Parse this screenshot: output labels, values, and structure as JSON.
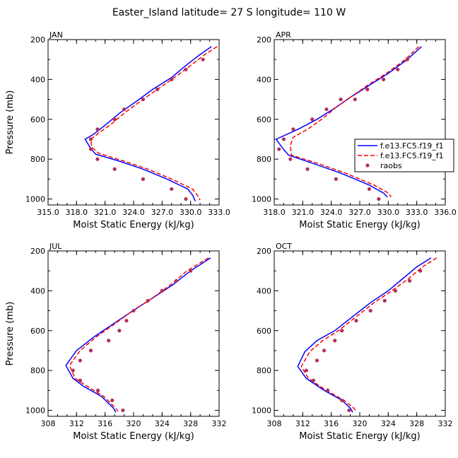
{
  "figure_title": "Easter_Island  latitude= 27 S longitude= 110 W",
  "colors": {
    "model1": "#0000ff",
    "model2": "#ff0000",
    "raobs": "#b0305a",
    "axis": "#000000"
  },
  "legend": {
    "entries": [
      "f.e13.FC5.f19_f1",
      "f.e13.FC5.f19_f1",
      "raobs"
    ]
  },
  "chart_data": [
    {
      "type": "line",
      "panel": "JAN",
      "xlabel": "Moist Static Energy (kJ/kg)",
      "ylabel": "Pressure (mb)",
      "xlim": [
        315,
        333
      ],
      "ylim": [
        1030,
        200
      ],
      "xticks": [
        "315.0",
        "318.0",
        "321.0",
        "324.0",
        "327.0",
        "330.0",
        "333.0"
      ],
      "xtick_values": [
        315,
        318,
        321,
        324,
        327,
        330,
        333
      ],
      "yticks": [
        "200",
        "400",
        "600",
        "800",
        "1000"
      ],
      "ytick_values": [
        200,
        400,
        600,
        800,
        1000
      ],
      "series": [
        {
          "name": "f.e13.FC5.f19_f1",
          "style": "solid",
          "points": [
            [
              332.2,
              235
            ],
            [
              331.0,
              275
            ],
            [
              329.5,
              330
            ],
            [
              328.0,
              390
            ],
            [
              326.0,
              450
            ],
            [
              324.3,
              510
            ],
            [
              322.5,
              570
            ],
            [
              321.0,
              630
            ],
            [
              319.8,
              675
            ],
            [
              318.9,
              700
            ],
            [
              319.4,
              740
            ],
            [
              320.0,
              775
            ],
            [
              322.5,
              810
            ],
            [
              325.0,
              850
            ],
            [
              327.5,
              900
            ],
            [
              329.7,
              950
            ],
            [
              330.2,
              980
            ],
            [
              330.5,
              1010
            ]
          ]
        },
        {
          "name": "f.e13.FC5.f19_f1",
          "style": "dashed",
          "points": [
            [
              332.8,
              235
            ],
            [
              331.5,
              275
            ],
            [
              330.0,
              330
            ],
            [
              328.3,
              390
            ],
            [
              326.5,
              450
            ],
            [
              324.7,
              510
            ],
            [
              323.0,
              570
            ],
            [
              321.5,
              630
            ],
            [
              320.3,
              670
            ],
            [
              319.5,
              700
            ],
            [
              319.6,
              740
            ],
            [
              320.3,
              770
            ],
            [
              323.0,
              810
            ],
            [
              325.5,
              850
            ],
            [
              328.0,
              900
            ],
            [
              330.2,
              950
            ],
            [
              330.7,
              980
            ],
            [
              331.0,
              1005
            ]
          ]
        }
      ],
      "raobs": [
        [
          331.3,
          300
        ],
        [
          329.5,
          350
        ],
        [
          328.0,
          400
        ],
        [
          326.5,
          450
        ],
        [
          325.0,
          500
        ],
        [
          323.0,
          550
        ],
        [
          322.0,
          600
        ],
        [
          320.2,
          650
        ],
        [
          319.5,
          700
        ],
        [
          319.5,
          750
        ],
        [
          320.2,
          800
        ],
        [
          322.0,
          850
        ],
        [
          325.0,
          900
        ],
        [
          328.0,
          950
        ],
        [
          329.5,
          1000
        ]
      ]
    },
    {
      "type": "line",
      "panel": "APR",
      "xlabel": "Moist Static Energy (kJ/kg)",
      "ylabel": "Pressure (mb)",
      "xlim": [
        318,
        336
      ],
      "ylim": [
        1030,
        200
      ],
      "xticks": [
        "318.0",
        "321.0",
        "324.0",
        "327.0",
        "330.0",
        "333.0",
        "336.0"
      ],
      "xtick_values": [
        318,
        321,
        324,
        327,
        330,
        333,
        336
      ],
      "yticks": [
        "200",
        "400",
        "600",
        "800",
        "1000"
      ],
      "ytick_values": [
        200,
        400,
        600,
        800,
        1000
      ],
      "series": [
        {
          "name": "f.e13.FC5.f19_f1",
          "style": "solid",
          "points": [
            [
              333.5,
              235
            ],
            [
              332.0,
              300
            ],
            [
              330.0,
              370
            ],
            [
              328.0,
              430
            ],
            [
              326.0,
              490
            ],
            [
              324.5,
              540
            ],
            [
              322.5,
              600
            ],
            [
              320.5,
              650
            ],
            [
              318.2,
              700
            ],
            [
              318.8,
              740
            ],
            [
              319.5,
              780
            ],
            [
              322.0,
              820
            ],
            [
              325.0,
              870
            ],
            [
              328.0,
              930
            ],
            [
              329.5,
              970
            ],
            [
              329.9,
              990
            ]
          ]
        },
        {
          "name": "f.e13.FC5.f19_f1",
          "style": "dashed",
          "points": [
            [
              333.2,
              235
            ],
            [
              331.8,
              300
            ],
            [
              329.8,
              370
            ],
            [
              327.8,
              430
            ],
            [
              326.0,
              490
            ],
            [
              324.5,
              540
            ],
            [
              323.0,
              600
            ],
            [
              321.5,
              650
            ],
            [
              320.0,
              690
            ],
            [
              319.7,
              730
            ],
            [
              319.8,
              780
            ],
            [
              322.5,
              820
            ],
            [
              325.5,
              870
            ],
            [
              328.5,
              930
            ],
            [
              330.0,
              970
            ],
            [
              330.3,
              990
            ]
          ]
        }
      ],
      "raobs": [
        [
          332.0,
          300
        ],
        [
          331.0,
          350
        ],
        [
          329.5,
          400
        ],
        [
          327.8,
          450
        ],
        [
          326.5,
          500
        ],
        [
          325.0,
          500
        ],
        [
          322.0,
          600
        ],
        [
          323.5,
          550
        ],
        [
          320.0,
          650
        ],
        [
          319.0,
          700
        ],
        [
          318.5,
          750
        ],
        [
          319.7,
          800
        ],
        [
          321.5,
          850
        ],
        [
          324.5,
          900
        ],
        [
          328.0,
          950
        ],
        [
          329.0,
          1000
        ]
      ]
    },
    {
      "type": "line",
      "panel": "JUL",
      "xlabel": "Moist Static Energy (kJ/kg)",
      "ylabel": "Pressure (mb)",
      "xlim": [
        308,
        332
      ],
      "ylim": [
        1030,
        200
      ],
      "xticks": [
        "308",
        "312",
        "316",
        "320",
        "324",
        "328",
        "332"
      ],
      "xtick_values": [
        308,
        312,
        316,
        320,
        324,
        328,
        332
      ],
      "yticks": [
        "200",
        "400",
        "600",
        "800",
        "1000"
      ],
      "ytick_values": [
        200,
        400,
        600,
        800,
        1000
      ],
      "series": [
        {
          "name": "f.e13.FC5.f19_f1",
          "style": "solid",
          "points": [
            [
              330.8,
              235
            ],
            [
              328.0,
              300
            ],
            [
              325.5,
              370
            ],
            [
              322.5,
              440
            ],
            [
              319.5,
              510
            ],
            [
              317.0,
              570
            ],
            [
              314.5,
              630
            ],
            [
              312.0,
              700
            ],
            [
              310.5,
              775
            ],
            [
              311.5,
              840
            ],
            [
              313.0,
              880
            ],
            [
              315.5,
              930
            ],
            [
              317.2,
              990
            ],
            [
              317.5,
              1010
            ]
          ]
        },
        {
          "name": "f.e13.FC5.f19_f1",
          "style": "dashed",
          "points": [
            [
              330.5,
              235
            ],
            [
              327.5,
              300
            ],
            [
              325.2,
              370
            ],
            [
              322.5,
              440
            ],
            [
              319.5,
              510
            ],
            [
              317.2,
              570
            ],
            [
              314.8,
              630
            ],
            [
              312.5,
              700
            ],
            [
              311.0,
              775
            ],
            [
              311.8,
              840
            ],
            [
              313.5,
              880
            ],
            [
              315.8,
              930
            ],
            [
              317.5,
              990
            ],
            [
              317.8,
              1005
            ]
          ]
        }
      ],
      "raobs": [
        [
          328.0,
          300
        ],
        [
          326.0,
          350
        ],
        [
          324.0,
          400
        ],
        [
          322.0,
          450
        ],
        [
          320.0,
          500
        ],
        [
          319.0,
          550
        ],
        [
          318.0,
          600
        ],
        [
          316.5,
          650
        ],
        [
          314.0,
          700
        ],
        [
          312.5,
          750
        ],
        [
          311.5,
          800
        ],
        [
          312.5,
          850
        ],
        [
          315.0,
          900
        ],
        [
          317.0,
          950
        ],
        [
          318.5,
          1000
        ]
      ]
    },
    {
      "type": "line",
      "panel": "OCT",
      "xlabel": "Moist Static Energy (kJ/kg)",
      "ylabel": "Pressure (mb)",
      "xlim": [
        308,
        332
      ],
      "ylim": [
        1030,
        200
      ],
      "xticks": [
        "308",
        "312",
        "316",
        "320",
        "324",
        "328",
        "332"
      ],
      "xtick_values": [
        308,
        312,
        316,
        320,
        324,
        328,
        332
      ],
      "yticks": [
        "200",
        "400",
        "600",
        "800",
        "1000"
      ],
      "ytick_values": [
        200,
        400,
        600,
        800,
        1000
      ],
      "series": [
        {
          "name": "f.e13.FC5.f19_f1",
          "style": "solid",
          "points": [
            [
              330.0,
              235
            ],
            [
              328.0,
              280
            ],
            [
              326.0,
              340
            ],
            [
              324.0,
              400
            ],
            [
              321.5,
              460
            ],
            [
              319.0,
              530
            ],
            [
              316.5,
              600
            ],
            [
              314.0,
              650
            ],
            [
              312.3,
              705
            ],
            [
              311.3,
              780
            ],
            [
              312.5,
              840
            ],
            [
              315.0,
              900
            ],
            [
              317.5,
              950
            ],
            [
              318.7,
              990
            ],
            [
              319.0,
              1010
            ]
          ]
        },
        {
          "name": "f.e13.FC5.f19_f1",
          "style": "dashed",
          "points": [
            [
              330.8,
              235
            ],
            [
              328.8,
              280
            ],
            [
              326.8,
              340
            ],
            [
              324.5,
              400
            ],
            [
              322.0,
              460
            ],
            [
              319.5,
              530
            ],
            [
              317.0,
              600
            ],
            [
              314.8,
              650
            ],
            [
              313.0,
              705
            ],
            [
              311.8,
              780
            ],
            [
              312.8,
              840
            ],
            [
              315.3,
              900
            ],
            [
              317.8,
              950
            ],
            [
              319.2,
              990
            ],
            [
              319.5,
              1005
            ]
          ]
        }
      ],
      "raobs": [
        [
          328.5,
          300
        ],
        [
          327.0,
          350
        ],
        [
          325.0,
          400
        ],
        [
          323.5,
          450
        ],
        [
          321.5,
          500
        ],
        [
          319.5,
          550
        ],
        [
          317.5,
          600
        ],
        [
          316.5,
          650
        ],
        [
          315.0,
          700
        ],
        [
          314.0,
          750
        ],
        [
          312.5,
          800
        ],
        [
          313.5,
          850
        ],
        [
          315.5,
          900
        ],
        [
          317.5,
          950
        ],
        [
          318.5,
          1000
        ]
      ]
    }
  ]
}
